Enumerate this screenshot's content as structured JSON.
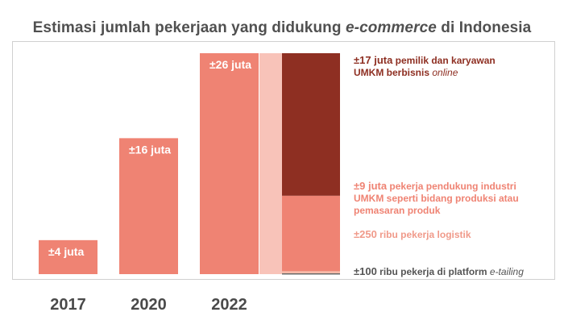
{
  "title": {
    "prefix": "Estimasi jumlah pekerjaan yang didukung ",
    "italic": "e-commerce",
    "suffix": " di Indonesia"
  },
  "colors": {
    "bar": "#ef8373",
    "bar_dark": "#8e2f22",
    "connector": "#f8c3b9",
    "logistik": "#f6b9a7",
    "etailing": "#666666",
    "axis_text": "#4a4a4a",
    "frame": "#d0d0d0"
  },
  "chart_data": {
    "type": "bar",
    "title": "Estimasi jumlah pekerjaan yang didukung e-commerce di Indonesia",
    "categories": [
      "2017",
      "2020",
      "2022"
    ],
    "values": [
      4,
      16,
      26
    ],
    "unit": "juta",
    "value_labels": [
      "±4 juta",
      "±16 juta",
      "±26 juta"
    ],
    "ylim": [
      0,
      26
    ],
    "breakdown": {
      "category": "2022",
      "segments": [
        {
          "value": 0.1,
          "color": "#666666",
          "label_lines": [
            [
              {
                "t": "±100",
                "b": true
              },
              {
                "t": " ribu pekerja di platform "
              },
              {
                "t": "e-tailing",
                "i": true
              }
            ]
          ]
        },
        {
          "value": 0.25,
          "color": "#f6b9a7",
          "label_lines": [
            [
              {
                "t": "±250",
                "b": true
              },
              {
                "t": " ribu pekerja logistik"
              }
            ]
          ]
        },
        {
          "value": 9,
          "color": "#ef8373",
          "label_lines": [
            [
              {
                "t": "±9 juta",
                "b": true
              },
              {
                "t": " pekerja pendukung industri"
              }
            ],
            [
              {
                "t": "UMKM seperti bidang produksi atau"
              }
            ],
            [
              {
                "t": "pemasaran produk"
              }
            ]
          ]
        },
        {
          "value": 17,
          "color": "#8e2f22",
          "label_lines": [
            [
              {
                "t": "±17 juta",
                "b": true
              },
              {
                "t": " pemilik dan karyawan"
              }
            ],
            [
              {
                "t": "UMKM berbisnis "
              },
              {
                "t": "online",
                "i": true
              }
            ]
          ]
        }
      ]
    }
  }
}
